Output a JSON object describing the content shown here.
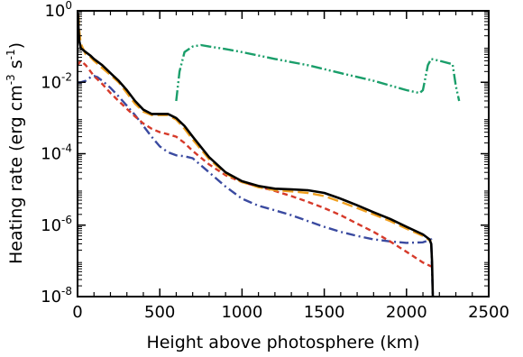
{
  "chart_data": {
    "type": "line",
    "title": "",
    "xlabel": "Height above photosphere (km)",
    "ylabel": {
      "main": "Heating rate (erg cm",
      "exp1": "-3",
      "mid": " s",
      "exp2": "-1",
      "end": ")"
    },
    "x_scale": "linear",
    "y_scale": "log",
    "xlim": [
      0,
      2500
    ],
    "ylim": [
      1e-08,
      1
    ],
    "x_ticks": [
      0,
      500,
      1000,
      1500,
      2000,
      2500
    ],
    "x_tick_labels": [
      "0",
      "500",
      "1000",
      "1500",
      "2000",
      "2500"
    ],
    "y_ticks": [
      1e-08,
      1e-06,
      0.0001,
      0.01,
      1
    ],
    "y_tick_labels": [
      {
        "base": "10",
        "exp": "-8"
      },
      {
        "base": "10",
        "exp": "-6"
      },
      {
        "base": "10",
        "exp": "-4"
      },
      {
        "base": "10",
        "exp": "-2"
      },
      {
        "base": "10",
        "exp": "0"
      }
    ],
    "grid": false,
    "legend": "none",
    "series": [
      {
        "color": "#1a9e6a",
        "style": "dash-dot-dot",
        "x": [
          600,
          620,
          650,
          700,
          750,
          800,
          900,
          1000,
          1200,
          1400,
          1600,
          1800,
          2000,
          2080,
          2100,
          2130,
          2150,
          2200,
          2280,
          2300,
          2320
        ],
        "y": [
          0.003,
          0.02,
          0.07,
          0.1,
          0.11,
          0.1,
          0.085,
          0.07,
          0.045,
          0.03,
          0.018,
          0.011,
          0.006,
          0.005,
          0.006,
          0.03,
          0.045,
          0.04,
          0.032,
          0.008,
          0.003
        ]
      },
      {
        "color": "#3a4aa0",
        "style": "dash-dot",
        "x": [
          0,
          20,
          50,
          80,
          100,
          120,
          150,
          200,
          250,
          300,
          350,
          400,
          450,
          500,
          550,
          600,
          650,
          700,
          800,
          900,
          1000,
          1100,
          1200,
          1300,
          1400,
          1500,
          1600,
          1700,
          1800,
          1900,
          2000,
          2100,
          2150,
          2160
        ],
        "y": [
          0.01,
          0.01,
          0.011,
          0.014,
          0.015,
          0.014,
          0.011,
          0.007,
          0.004,
          0.0022,
          0.0012,
          0.0006,
          0.0003,
          0.00016,
          0.00011,
          9e-05,
          8.5e-05,
          7.5e-05,
          3e-05,
          1.2e-05,
          5.5e-06,
          3.5e-06,
          2.6e-06,
          1.9e-06,
          1.3e-06,
          9e-07,
          6.5e-07,
          5e-07,
          4e-07,
          3.5e-07,
          3.2e-07,
          3.3e-07,
          4e-07,
          1e-08
        ]
      },
      {
        "color": "#d63a2a",
        "style": "dashed",
        "x": [
          0,
          20,
          50,
          100,
          150,
          200,
          250,
          300,
          350,
          400,
          450,
          500,
          550,
          600,
          650,
          700,
          800,
          900,
          1000,
          1100,
          1200,
          1300,
          1400,
          1500,
          1600,
          1700,
          1800,
          1900,
          2000,
          2100,
          2150
        ],
        "y": [
          0.03,
          0.04,
          0.03,
          0.015,
          0.009,
          0.005,
          0.003,
          0.0018,
          0.0011,
          0.0007,
          0.0005,
          0.0004,
          0.00035,
          0.0003,
          0.0002,
          0.00012,
          5e-05,
          2.5e-05,
          1.6e-05,
          1.2e-05,
          9e-06,
          6.5e-06,
          4.5e-06,
          3e-06,
          1.9e-06,
          1.1e-06,
          6.5e-07,
          3.5e-07,
          1.8e-07,
          9e-08,
          7e-08
        ]
      },
      {
        "color": "#f0a020",
        "style": "long-dash",
        "x": [
          5,
          10,
          20,
          50,
          80,
          100,
          150,
          200,
          250,
          300,
          350,
          400,
          450,
          500,
          550,
          600,
          650,
          700,
          800,
          900,
          1000,
          1100,
          1200,
          1300,
          1400,
          1500,
          1600,
          1700,
          1800,
          1900,
          2000,
          2100,
          2150
        ],
        "y": [
          0.8,
          0.3,
          0.12,
          0.06,
          0.05,
          0.04,
          0.025,
          0.016,
          0.01,
          0.005,
          0.0025,
          0.0015,
          0.0012,
          0.0012,
          0.0012,
          0.0009,
          0.0005,
          0.00025,
          7e-05,
          2.8e-05,
          1.6e-05,
          1.15e-05,
          9.5e-06,
          8.8e-06,
          8e-06,
          6.5e-06,
          4.5e-06,
          3e-06,
          2e-06,
          1.3e-06,
          8e-07,
          5e-07,
          3.5e-07
        ]
      },
      {
        "color": "#000000",
        "style": "solid",
        "x": [
          2,
          5,
          10,
          20,
          50,
          80,
          100,
          150,
          200,
          250,
          300,
          350,
          400,
          450,
          500,
          550,
          600,
          650,
          700,
          800,
          900,
          1000,
          1100,
          1200,
          1300,
          1400,
          1500,
          1600,
          1700,
          1800,
          1900,
          2000,
          2100,
          2140,
          2150,
          2155,
          2160
        ],
        "y": [
          0.9,
          0.4,
          0.15,
          0.09,
          0.07,
          0.055,
          0.045,
          0.03,
          0.018,
          0.011,
          0.006,
          0.003,
          0.0017,
          0.0013,
          0.0013,
          0.0013,
          0.001,
          0.0006,
          0.0003,
          8e-05,
          3e-05,
          1.7e-05,
          1.25e-05,
          1.05e-05,
          1e-05,
          9.5e-06,
          8e-06,
          5.5e-06,
          3.6e-06,
          2.3e-06,
          1.5e-06,
          9e-07,
          5.5e-07,
          4e-07,
          3e-07,
          1e-07,
          1e-08
        ]
      }
    ]
  }
}
